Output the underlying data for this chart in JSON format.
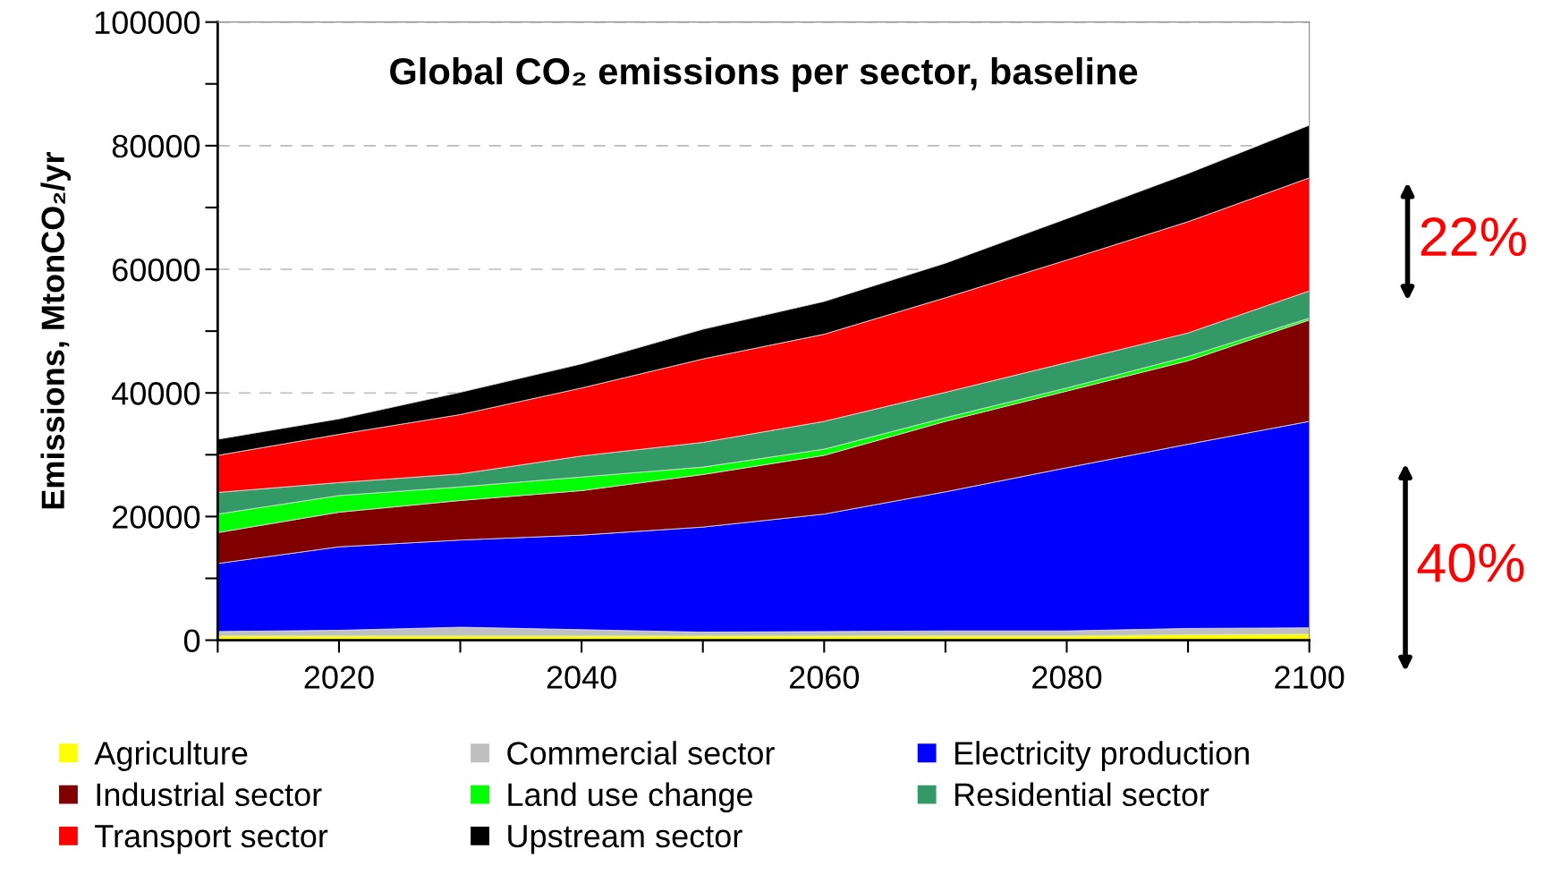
{
  "chart_data": {
    "type": "area",
    "stacked": true,
    "title": "Global CO₂ emissions per sector, baseline",
    "ylabel": "Emissions, MtonCO₂/yr",
    "x": [
      2010,
      2020,
      2030,
      2040,
      2050,
      2060,
      2070,
      2080,
      2090,
      2100
    ],
    "series": [
      {
        "name": "Agriculture",
        "color": "#ffff00",
        "values": [
          700,
          700,
          700,
          700,
          700,
          700,
          700,
          700,
          900,
          1000
        ]
      },
      {
        "name": "Commercial sector",
        "color": "#c0c0c0",
        "values": [
          700,
          900,
          1400,
          1000,
          600,
          700,
          800,
          800,
          1000,
          1000
        ]
      },
      {
        "name": "Electricity production",
        "color": "#0000ff",
        "values": [
          11000,
          13500,
          14100,
          15300,
          17000,
          19000,
          22500,
          26400,
          29800,
          33400
        ]
      },
      {
        "name": "Industrial sector",
        "color": "#800000",
        "values": [
          5000,
          5600,
          6400,
          7200,
          8500,
          9500,
          11400,
          12400,
          13500,
          16400
        ]
      },
      {
        "name": "Land use change",
        "color": "#00ff00",
        "values": [
          3000,
          2700,
          2200,
          2200,
          1200,
          1000,
          600,
          500,
          700,
          300
        ]
      },
      {
        "name": "Residential sector",
        "color": "#339966",
        "values": [
          3500,
          2100,
          2100,
          3400,
          4000,
          4500,
          4100,
          4100,
          3800,
          4400
        ]
      },
      {
        "name": "Transport sector",
        "color": "#ff0000",
        "values": [
          6000,
          7800,
          9600,
          11000,
          13500,
          14100,
          15300,
          16600,
          18000,
          18300
        ]
      },
      {
        "name": "Upstream sector",
        "color": "#000000",
        "values": [
          2600,
          2500,
          3600,
          3900,
          4800,
          5300,
          5600,
          6700,
          7800,
          8500
        ]
      }
    ],
    "xlim": [
      2010,
      2100
    ],
    "xticks": [
      {
        "value": 2010,
        "label": null
      },
      2020,
      {
        "value": 2030,
        "label": null
      },
      2040,
      {
        "value": 2050,
        "label": null
      },
      2060,
      {
        "value": 2070,
        "label": null
      },
      2080,
      {
        "value": 2090,
        "label": null
      },
      2100
    ],
    "ylim": [
      0,
      100000
    ],
    "yticks": [
      0,
      {
        "value": 10000,
        "label": null
      },
      20000,
      {
        "value": 30000,
        "label": null
      },
      40000,
      {
        "value": 50000,
        "label": null
      },
      60000,
      {
        "value": 70000,
        "label": null
      },
      80000,
      {
        "value": 90000,
        "label": null
      },
      100000
    ],
    "grid": "y",
    "legend": "bottom",
    "annotations": [
      "22%",
      "40%"
    ]
  }
}
